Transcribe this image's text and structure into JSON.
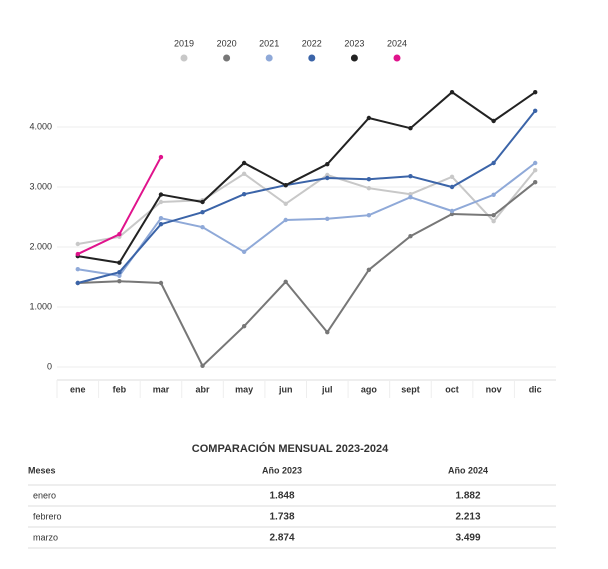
{
  "chart_data": {
    "type": "line",
    "categories": [
      "ene",
      "feb",
      "mar",
      "abr",
      "may",
      "jun",
      "jul",
      "ago",
      "sept",
      "oct",
      "nov",
      "dic"
    ],
    "series": [
      {
        "name": "2019",
        "color": "#c8c8c8",
        "values": [
          2050,
          2170,
          2750,
          2780,
          3220,
          2720,
          3200,
          2980,
          2880,
          3170,
          2430,
          3280
        ]
      },
      {
        "name": "2020",
        "color": "#777777",
        "values": [
          1400,
          1430,
          1400,
          20,
          680,
          1420,
          580,
          1620,
          2180,
          2550,
          2530,
          3080
        ]
      },
      {
        "name": "2021",
        "color": "#8fa9d8",
        "values": [
          1630,
          1520,
          2480,
          2330,
          1920,
          2450,
          2470,
          2530,
          2830,
          2600,
          2870,
          3400
        ]
      },
      {
        "name": "2022",
        "color": "#3b64a8",
        "values": [
          1400,
          1580,
          2380,
          2580,
          2880,
          3030,
          3150,
          3130,
          3180,
          3000,
          3400,
          4270
        ]
      },
      {
        "name": "2023",
        "color": "#222222",
        "values": [
          1848,
          1738,
          2874,
          2750,
          3400,
          3030,
          3380,
          4150,
          3980,
          4580,
          4100,
          4580
        ]
      },
      {
        "name": "2024",
        "color": "#e0138c",
        "values": [
          1882,
          2213,
          3499,
          null,
          null,
          null,
          null,
          null,
          null,
          null,
          null,
          null
        ]
      }
    ],
    "ylim": [
      0,
      4800
    ],
    "yticks": [
      0,
      {
        "value": 1000,
        "label": "1.000"
      },
      {
        "value": 2000,
        "label": "2.000"
      },
      {
        "value": 3000,
        "label": "3.000"
      },
      {
        "value": 4000,
        "label": "4.000"
      }
    ],
    "grid": true
  },
  "table": {
    "title": "COMPARACIÓN MENSUAL 2023-2024",
    "headers": [
      "Meses",
      "Año 2023",
      "Año 2024"
    ],
    "rows": [
      [
        "enero",
        "1.848",
        "1.882"
      ],
      [
        "febrero",
        "1.738",
        "2.213"
      ],
      [
        "marzo",
        "2.874",
        "3.499"
      ]
    ]
  }
}
